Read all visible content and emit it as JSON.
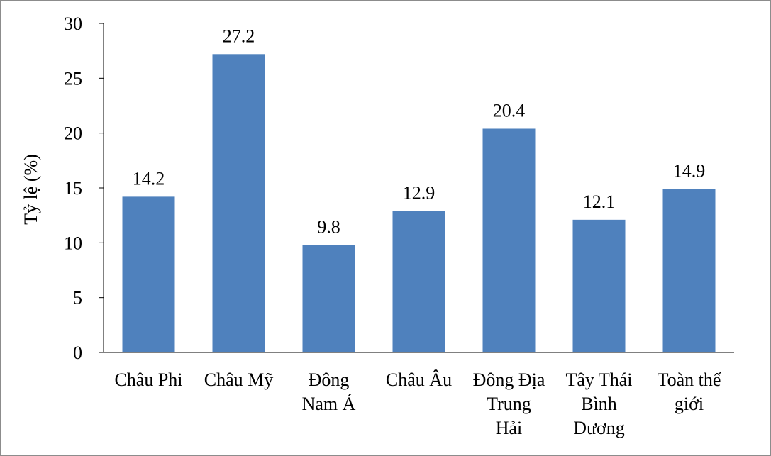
{
  "chart_data": {
    "type": "bar",
    "categories": [
      [
        "Châu Phi"
      ],
      [
        "Châu Mỹ"
      ],
      [
        "Đông",
        "Nam Á"
      ],
      [
        "Châu Âu"
      ],
      [
        "Đông Địa",
        "Trung",
        "Hải"
      ],
      [
        "Tây Thái",
        "Bình",
        "Dương"
      ],
      [
        "Toàn thế",
        "giới"
      ]
    ],
    "values": [
      14.2,
      27.2,
      9.8,
      12.9,
      20.4,
      12.1,
      14.9
    ],
    "data_labels": [
      "14.2",
      "27.2",
      "9.8",
      "12.9",
      "20.4",
      "12.1",
      "14.9"
    ],
    "ylabel": "Tỷ lệ (%)",
    "ylim": [
      0,
      30
    ],
    "yticks": [
      0,
      5,
      10,
      15,
      20,
      25,
      30
    ],
    "grid": false,
    "legend": "none",
    "bar_color": "#4f81bd"
  }
}
